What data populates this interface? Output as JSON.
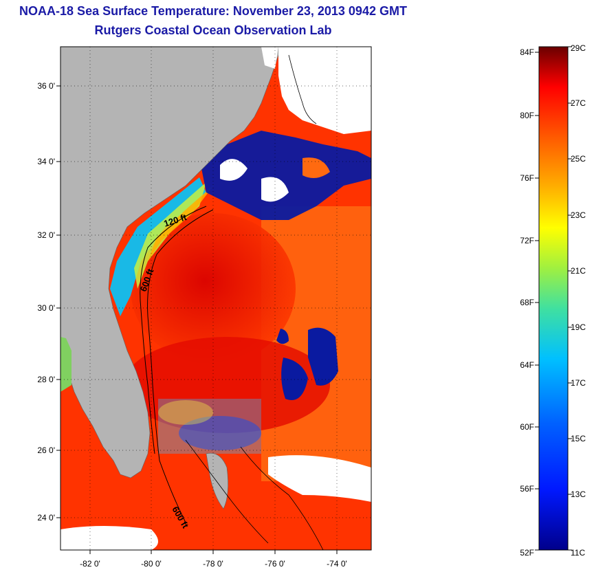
{
  "header": {
    "title": "NOAA-18 Sea Surface Temperature:  November 23, 2013 0942 GMT",
    "subtitle": "Rutgers Coastal Ocean Observation Lab"
  },
  "map": {
    "lat_ticks": [
      "36 0'",
      "34 0'",
      "32 0'",
      "30 0'",
      "28 0'",
      "26 0'",
      "24 0'"
    ],
    "lon_ticks": [
      "-82 0'",
      "-80 0'",
      "-78 0'",
      "-76 0'",
      "-74 0'"
    ],
    "extent": {
      "lon": [
        -83.0,
        -73.0
      ],
      "lat": [
        23.0,
        37.0
      ]
    },
    "isobath_labels": [
      "120 ft",
      "600 ft",
      "600 ft"
    ],
    "colors": {
      "land": "#b4b4b4",
      "cloud": "#ffffff",
      "cold_water": "#00008b",
      "warm_water": "#ff2a00"
    }
  },
  "colorbar": {
    "fahrenheit": [
      "84F",
      "80F",
      "76F",
      "72F",
      "68F",
      "64F",
      "60F",
      "56F",
      "52F"
    ],
    "celsius": [
      "29C",
      "27C",
      "25C",
      "23C",
      "21C",
      "19C",
      "17C",
      "15C",
      "13C",
      "11C"
    ],
    "range_c": [
      11,
      29
    ]
  }
}
